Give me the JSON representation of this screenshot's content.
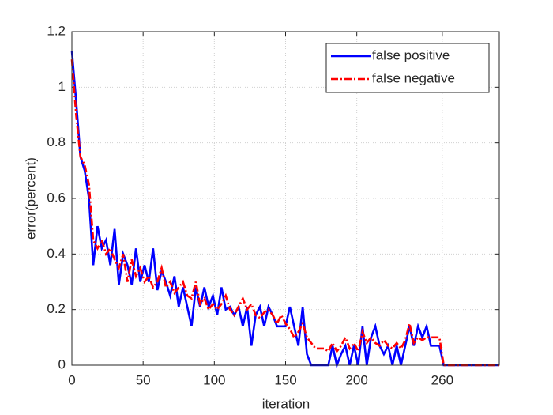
{
  "chart_data": {
    "type": "line",
    "xlabel": "iteration",
    "ylabel": "error(percent)",
    "x": [
      0,
      3,
      6,
      9,
      12,
      15,
      18,
      21,
      24,
      27,
      30,
      33,
      36,
      39,
      42,
      45,
      48,
      51,
      54,
      57,
      60,
      63,
      66,
      69,
      72,
      75,
      78,
      81,
      84,
      87,
      90,
      93,
      96,
      99,
      102,
      105,
      108,
      111,
      114,
      117,
      120,
      123,
      126,
      129,
      132,
      135,
      138,
      141,
      144,
      147,
      150,
      153,
      156,
      159,
      162,
      165,
      168,
      171,
      174,
      177,
      180,
      183,
      186,
      189,
      192,
      195,
      198,
      201,
      204,
      207,
      210,
      213,
      216,
      219,
      222,
      225,
      228,
      231,
      234,
      237,
      240,
      243,
      246,
      249,
      252,
      255,
      258,
      261,
      264,
      267,
      270,
      273,
      276,
      279,
      282,
      285,
      288,
      291,
      294,
      297,
      300
    ],
    "series": [
      {
        "name": "false positive",
        "color": "#0000ff",
        "style": "solid",
        "values": [
          1.13,
          0.95,
          0.75,
          0.7,
          0.6,
          0.36,
          0.5,
          0.42,
          0.45,
          0.36,
          0.49,
          0.29,
          0.4,
          0.36,
          0.29,
          0.42,
          0.3,
          0.36,
          0.3,
          0.42,
          0.27,
          0.34,
          0.3,
          0.25,
          0.32,
          0.21,
          0.28,
          0.21,
          0.14,
          0.28,
          0.21,
          0.28,
          0.21,
          0.25,
          0.18,
          0.28,
          0.2,
          0.21,
          0.18,
          0.21,
          0.14,
          0.21,
          0.07,
          0.18,
          0.21,
          0.14,
          0.21,
          0.18,
          0.14,
          0.14,
          0.14,
          0.21,
          0.14,
          0.07,
          0.21,
          0.04,
          0,
          0,
          0,
          0,
          0,
          0.07,
          0,
          0.04,
          0.07,
          0,
          0.07,
          0,
          0.14,
          0,
          0.1,
          0.14,
          0.07,
          0.04,
          0.07,
          0,
          0.07,
          0,
          0.07,
          0.14,
          0.07,
          0.14,
          0.1,
          0.14,
          0.07,
          0.07,
          0.07,
          0,
          0,
          0,
          0,
          0,
          0,
          0,
          0,
          0,
          0,
          0,
          0,
          0,
          0
        ]
      },
      {
        "name": "false negative",
        "color": "#ff0000",
        "style": "dashdot",
        "values": [
          1.1,
          0.9,
          0.75,
          0.72,
          0.65,
          0.45,
          0.42,
          0.45,
          0.4,
          0.42,
          0.38,
          0.35,
          0.4,
          0.3,
          0.38,
          0.32,
          0.35,
          0.3,
          0.32,
          0.28,
          0.3,
          0.35,
          0.28,
          0.3,
          0.26,
          0.28,
          0.3,
          0.25,
          0.24,
          0.3,
          0.22,
          0.24,
          0.2,
          0.22,
          0.2,
          0.22,
          0.25,
          0.2,
          0.18,
          0.21,
          0.24,
          0.2,
          0.22,
          0.18,
          0.17,
          0.19,
          0.2,
          0.18,
          0.15,
          0.18,
          0.15,
          0.13,
          0.1,
          0.12,
          0.15,
          0.1,
          0.08,
          0.06,
          0.06,
          0.06,
          0.05,
          0.08,
          0.05,
          0.07,
          0.1,
          0.06,
          0.08,
          0.05,
          0.12,
          0.08,
          0.1,
          0.08,
          0.07,
          0.09,
          0.07,
          0.06,
          0.08,
          0.06,
          0.09,
          0.15,
          0.08,
          0.1,
          0.09,
          0.1,
          0.1,
          0.1,
          0.1,
          0,
          0,
          0,
          0,
          0,
          0,
          0,
          0,
          0,
          0,
          0,
          0,
          0,
          0
        ]
      }
    ],
    "xlim": [
      0,
      300
    ],
    "xticks": [
      0,
      50,
      100,
      150,
      200,
      260
    ],
    "ylim": [
      0,
      1.2
    ],
    "yticks": [
      0,
      0.2,
      0.4,
      0.6,
      0.8,
      1,
      1.2
    ],
    "grid": true,
    "legend": "upper right"
  }
}
